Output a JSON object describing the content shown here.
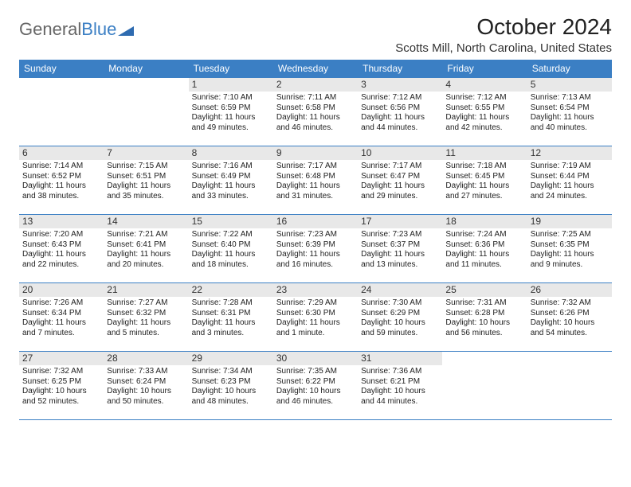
{
  "logo": {
    "part1": "General",
    "part2": "Blue"
  },
  "title": "October 2024",
  "location": "Scotts Mill, North Carolina, United States",
  "header_bg": "#3b7fc4",
  "day_headers": [
    "Sunday",
    "Monday",
    "Tuesday",
    "Wednesday",
    "Thursday",
    "Friday",
    "Saturday"
  ],
  "weeks": [
    [
      null,
      null,
      {
        "n": "1",
        "sr": "7:10 AM",
        "ss": "6:59 PM",
        "dl": "11 hours and 49 minutes."
      },
      {
        "n": "2",
        "sr": "7:11 AM",
        "ss": "6:58 PM",
        "dl": "11 hours and 46 minutes."
      },
      {
        "n": "3",
        "sr": "7:12 AM",
        "ss": "6:56 PM",
        "dl": "11 hours and 44 minutes."
      },
      {
        "n": "4",
        "sr": "7:12 AM",
        "ss": "6:55 PM",
        "dl": "11 hours and 42 minutes."
      },
      {
        "n": "5",
        "sr": "7:13 AM",
        "ss": "6:54 PM",
        "dl": "11 hours and 40 minutes."
      }
    ],
    [
      {
        "n": "6",
        "sr": "7:14 AM",
        "ss": "6:52 PM",
        "dl": "11 hours and 38 minutes."
      },
      {
        "n": "7",
        "sr": "7:15 AM",
        "ss": "6:51 PM",
        "dl": "11 hours and 35 minutes."
      },
      {
        "n": "8",
        "sr": "7:16 AM",
        "ss": "6:49 PM",
        "dl": "11 hours and 33 minutes."
      },
      {
        "n": "9",
        "sr": "7:17 AM",
        "ss": "6:48 PM",
        "dl": "11 hours and 31 minutes."
      },
      {
        "n": "10",
        "sr": "7:17 AM",
        "ss": "6:47 PM",
        "dl": "11 hours and 29 minutes."
      },
      {
        "n": "11",
        "sr": "7:18 AM",
        "ss": "6:45 PM",
        "dl": "11 hours and 27 minutes."
      },
      {
        "n": "12",
        "sr": "7:19 AM",
        "ss": "6:44 PM",
        "dl": "11 hours and 24 minutes."
      }
    ],
    [
      {
        "n": "13",
        "sr": "7:20 AM",
        "ss": "6:43 PM",
        "dl": "11 hours and 22 minutes."
      },
      {
        "n": "14",
        "sr": "7:21 AM",
        "ss": "6:41 PM",
        "dl": "11 hours and 20 minutes."
      },
      {
        "n": "15",
        "sr": "7:22 AM",
        "ss": "6:40 PM",
        "dl": "11 hours and 18 minutes."
      },
      {
        "n": "16",
        "sr": "7:23 AM",
        "ss": "6:39 PM",
        "dl": "11 hours and 16 minutes."
      },
      {
        "n": "17",
        "sr": "7:23 AM",
        "ss": "6:37 PM",
        "dl": "11 hours and 13 minutes."
      },
      {
        "n": "18",
        "sr": "7:24 AM",
        "ss": "6:36 PM",
        "dl": "11 hours and 11 minutes."
      },
      {
        "n": "19",
        "sr": "7:25 AM",
        "ss": "6:35 PM",
        "dl": "11 hours and 9 minutes."
      }
    ],
    [
      {
        "n": "20",
        "sr": "7:26 AM",
        "ss": "6:34 PM",
        "dl": "11 hours and 7 minutes."
      },
      {
        "n": "21",
        "sr": "7:27 AM",
        "ss": "6:32 PM",
        "dl": "11 hours and 5 minutes."
      },
      {
        "n": "22",
        "sr": "7:28 AM",
        "ss": "6:31 PM",
        "dl": "11 hours and 3 minutes."
      },
      {
        "n": "23",
        "sr": "7:29 AM",
        "ss": "6:30 PM",
        "dl": "11 hours and 1 minute."
      },
      {
        "n": "24",
        "sr": "7:30 AM",
        "ss": "6:29 PM",
        "dl": "10 hours and 59 minutes."
      },
      {
        "n": "25",
        "sr": "7:31 AM",
        "ss": "6:28 PM",
        "dl": "10 hours and 56 minutes."
      },
      {
        "n": "26",
        "sr": "7:32 AM",
        "ss": "6:26 PM",
        "dl": "10 hours and 54 minutes."
      }
    ],
    [
      {
        "n": "27",
        "sr": "7:32 AM",
        "ss": "6:25 PM",
        "dl": "10 hours and 52 minutes."
      },
      {
        "n": "28",
        "sr": "7:33 AM",
        "ss": "6:24 PM",
        "dl": "10 hours and 50 minutes."
      },
      {
        "n": "29",
        "sr": "7:34 AM",
        "ss": "6:23 PM",
        "dl": "10 hours and 48 minutes."
      },
      {
        "n": "30",
        "sr": "7:35 AM",
        "ss": "6:22 PM",
        "dl": "10 hours and 46 minutes."
      },
      {
        "n": "31",
        "sr": "7:36 AM",
        "ss": "6:21 PM",
        "dl": "10 hours and 44 minutes."
      },
      null,
      null
    ]
  ],
  "labels": {
    "sunrise": "Sunrise: ",
    "sunset": "Sunset: ",
    "daylight": "Daylight: "
  }
}
